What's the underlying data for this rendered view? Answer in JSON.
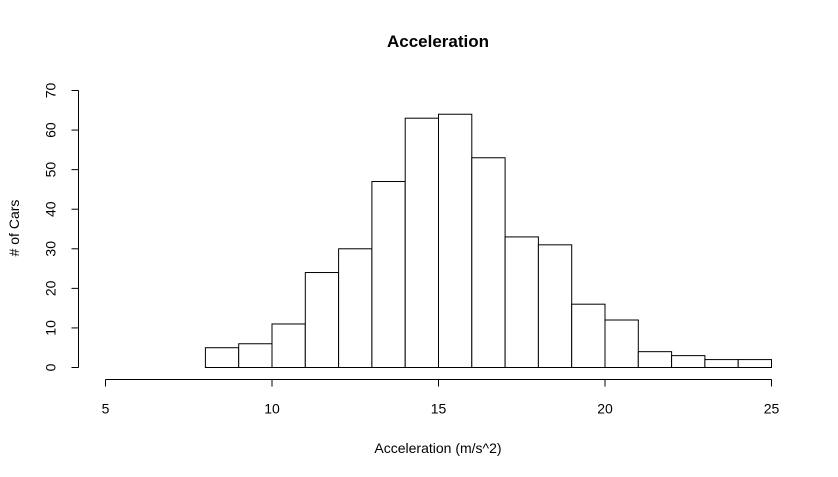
{
  "chart_data": {
    "type": "bar",
    "subtype": "histogram",
    "title": "Acceleration",
    "xlabel": "Acceleration (m/s^2)",
    "ylabel": "# of Cars",
    "xlim": [
      5,
      25
    ],
    "ylim": [
      0,
      70
    ],
    "x_ticks": [
      5,
      10,
      15,
      20,
      25
    ],
    "y_ticks": [
      0,
      10,
      20,
      30,
      40,
      50,
      60,
      70
    ],
    "grid": false,
    "bin_edges": [
      8,
      9,
      10,
      11,
      12,
      13,
      14,
      15,
      16,
      17,
      18,
      19,
      20,
      21,
      22,
      23,
      24,
      25
    ],
    "values": [
      5,
      6,
      11,
      24,
      30,
      47,
      63,
      64,
      53,
      33,
      31,
      16,
      12,
      4,
      3,
      2,
      2
    ],
    "bar_fill": "#ffffff",
    "bar_stroke": "#000000"
  }
}
